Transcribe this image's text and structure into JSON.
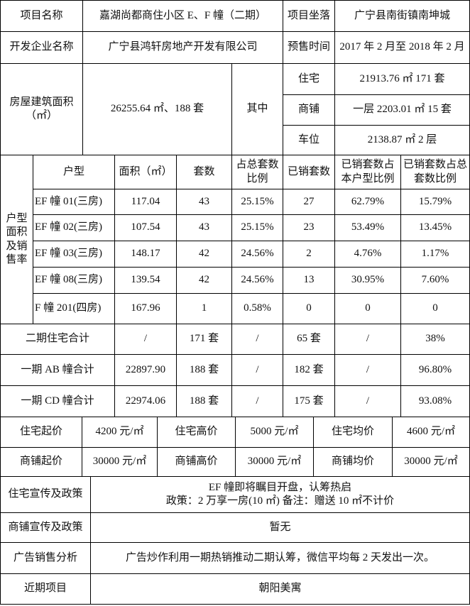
{
  "project": {
    "name_label": "项目名称",
    "name": "嘉湖尚都商住小区 E、F 幢（二期）",
    "location_label": "项目坐落",
    "location": "广宁县南街镇南坤城",
    "developer_label": "开发企业名称",
    "developer": "广宁县鸿轩房地产开发有限公司",
    "presale_label": "预售时间",
    "presale": "2017 年 2 月至 2018 年 2 月"
  },
  "area": {
    "label": "房屋建筑面积（㎡）",
    "total": "26255.64 ㎡、188 套",
    "of_which": "其中",
    "items": [
      {
        "label": "住宅",
        "value": "21913.76 ㎡ 171 套"
      },
      {
        "label": "商铺",
        "value": "一层 2203.01 ㎡ 15 套"
      },
      {
        "label": "车位",
        "value": "2138.87 ㎡ 2 层"
      }
    ]
  },
  "units": {
    "side_label": "户型面积及销售率",
    "headers": [
      "户型",
      "面积（㎡）",
      "套数",
      "占总套数比例",
      "已销套数",
      "已销套数占本户型比例",
      "已销套数占总套数比例"
    ],
    "rows": [
      [
        "EF 幢 01(三房)",
        "117.04",
        "43",
        "25.15%",
        "27",
        "62.79%",
        "15.79%"
      ],
      [
        "EF 幢 02(三房)",
        "107.54",
        "43",
        "25.15%",
        "23",
        "53.49%",
        "13.45%"
      ],
      [
        "EF 幢 03(三房)",
        "148.17",
        "42",
        "24.56%",
        "2",
        "4.76%",
        "1.17%"
      ],
      [
        "EF 幢 08(三房)",
        "139.54",
        "42",
        "24.56%",
        "13",
        "30.95%",
        "7.60%"
      ],
      [
        "F 幢 201(四房)",
        "167.96",
        "1",
        "0.58%",
        "0",
        "0",
        "0"
      ]
    ]
  },
  "totals": [
    [
      "二期住宅合计",
      "/",
      "171 套",
      "/",
      "65 套",
      "/",
      "38%"
    ],
    [
      "一期 AB 幢合计",
      "22897.90",
      "188 套",
      "/",
      "182 套",
      "/",
      "96.80%"
    ],
    [
      "一期 CD 幢合计",
      "22974.06",
      "188 套",
      "/",
      "175 套",
      "/",
      "93.08%"
    ]
  ],
  "prices": [
    [
      "住宅起价",
      "4200 元/㎡",
      "住宅高价",
      "5000 元/㎡",
      "住宅均价",
      "4600 元/㎡"
    ],
    [
      "商铺起价",
      "30000 元/㎡",
      "商铺高价",
      "30000 元/㎡",
      "商铺均价",
      "30000 元/㎡"
    ]
  ],
  "notes": [
    {
      "label": "住宅宣传及政策",
      "lines": [
        "EF 幢即将瞩目开盘，认筹热启",
        "政策：2 万享一房(10 ㎡) 备注：赠送 10 ㎡不计价"
      ]
    },
    {
      "label": "商铺宣传及政策",
      "lines": [
        "暂无"
      ]
    },
    {
      "label": "广告销售分析",
      "lines": [
        "广告炒作利用一期热销推动二期认筹，微信平均每 2 天发出一次。"
      ]
    },
    {
      "label": "近期项目",
      "lines": [
        "朝阳美寓"
      ]
    }
  ]
}
